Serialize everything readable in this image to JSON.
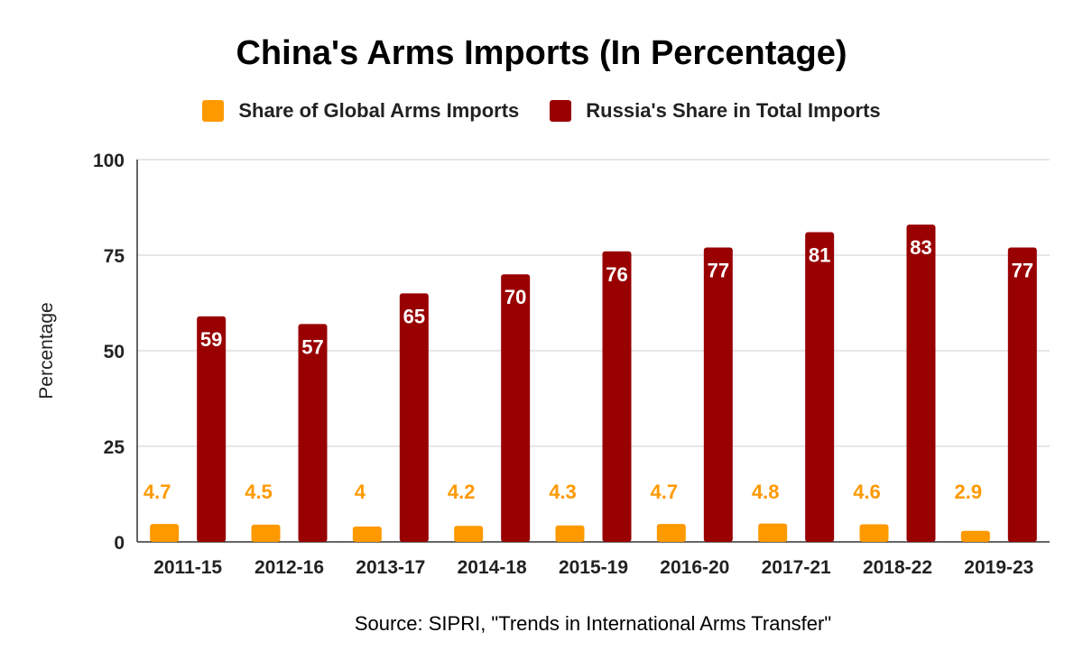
{
  "chart_data": {
    "type": "bar",
    "title": "China's Arms Imports (In Percentage)",
    "ylabel": "Percentage",
    "xlabel": "",
    "ylim": [
      0,
      100
    ],
    "yticks": [
      0,
      25,
      50,
      75,
      100
    ],
    "grid": true,
    "legend_position": "top",
    "categories": [
      "2011-15",
      "2012-16",
      "2013-17",
      "2014-18",
      "2015-19",
      "2016-20",
      "2017-21",
      "2018-22",
      "2019-23"
    ],
    "series": [
      {
        "name": "Share of Global Arms Imports",
        "color": "#ff9900",
        "label_color": "#ff9900",
        "values": [
          4.7,
          4.5,
          4,
          4.2,
          4.3,
          4.7,
          4.8,
          4.6,
          2.9
        ]
      },
      {
        "name": "Russia's Share in Total Imports",
        "color": "#990000",
        "label_color": "#ffffff",
        "values": [
          59,
          57,
          65,
          70,
          76,
          77,
          81,
          83,
          77
        ]
      }
    ],
    "source": "Source: SIPRI, \"Trends in International Arms Transfer\""
  }
}
